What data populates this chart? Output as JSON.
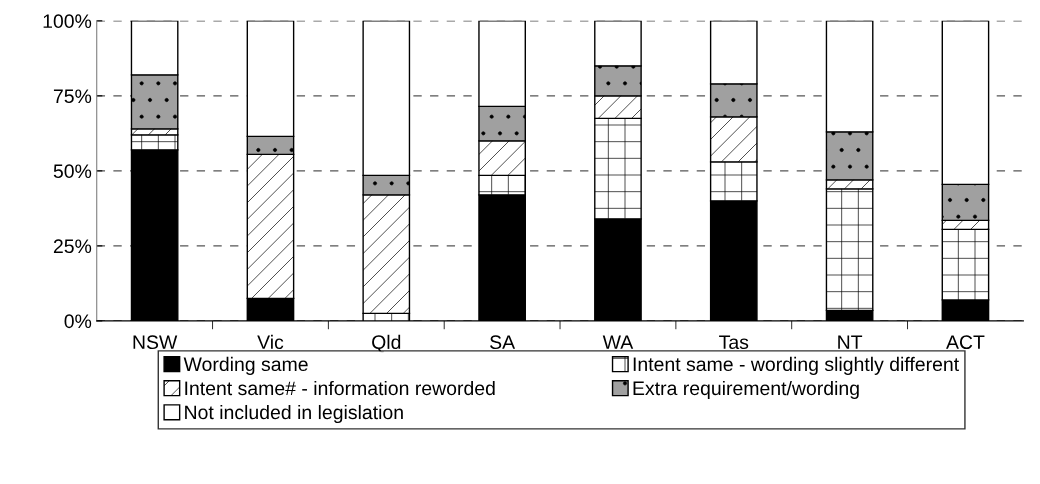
{
  "chart_data": {
    "type": "bar",
    "stacked": true,
    "categories": [
      "NSW",
      "Vic",
      "Qld",
      "SA",
      "WA",
      "Tas",
      "NT",
      "ACT"
    ],
    "series": [
      {
        "name": "Wording same",
        "color": "#000000",
        "values": [
          57,
          7.5,
          0,
          42,
          34,
          40,
          3.5,
          7
        ]
      },
      {
        "name": "Intent same - wording slightly different",
        "color": "#ffffff",
        "values": [
          5,
          0,
          2.5,
          6.5,
          33.5,
          13,
          40.5,
          23.5
        ]
      },
      {
        "name": "Intent same# - information reworded",
        "color": "#ffffff",
        "values": [
          2,
          48,
          39.5,
          11.5,
          7.5,
          15,
          3,
          3
        ]
      },
      {
        "name": "Extra requirement/wording",
        "color": "#a0a0a0",
        "values": [
          18,
          6,
          6.5,
          11.5,
          10,
          11,
          16,
          12
        ]
      },
      {
        "name": "Not included in legislation",
        "color": "#ffffff",
        "values": [
          18,
          38.5,
          51.5,
          28.5,
          15,
          21,
          37,
          54.5
        ]
      }
    ],
    "ylim": [
      0,
      100
    ],
    "yticks": [
      {
        "value": 0,
        "label": "0%"
      },
      {
        "value": 25,
        "label": "25%"
      },
      {
        "value": 50,
        "label": "50%"
      },
      {
        "value": 75,
        "label": "75%"
      },
      {
        "value": 100,
        "label": "100%"
      }
    ],
    "grid": "y",
    "legend": "bottom"
  }
}
